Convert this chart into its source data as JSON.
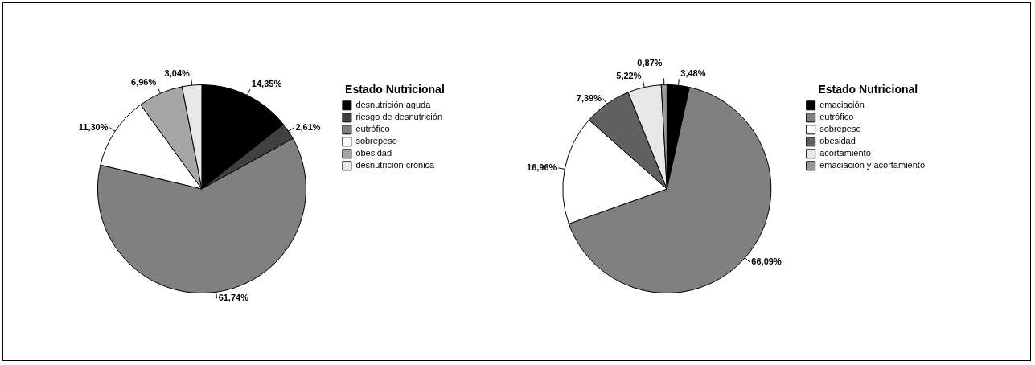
{
  "chart_data": [
    {
      "type": "pie",
      "legend_title": "Estado Nutricional",
      "legend": "right",
      "categories": [
        "desnutrición aguda",
        "riesgo de desnutrición",
        "eutrófico",
        "sobrepeso",
        "obesidad",
        "desnutrición crónica"
      ],
      "values": [
        14.35,
        2.61,
        61.74,
        11.3,
        6.96,
        3.04
      ],
      "value_labels": [
        "14,35%",
        "2,61%",
        "61,74%",
        "11,30%",
        "6,96%",
        "3,04%"
      ],
      "colors": [
        "#000000",
        "#404040",
        "#808080",
        "#ffffff",
        "#a6a6a6",
        "#e8e8e8"
      ]
    },
    {
      "type": "pie",
      "legend_title": "Estado Nutricional",
      "legend": "right",
      "categories": [
        "emaciación",
        "eutrófico",
        "sobrepeso",
        "obesidad",
        "acortamiento",
        "emaciación y acortamiento"
      ],
      "values": [
        3.48,
        66.09,
        16.96,
        7.39,
        5.22,
        0.87
      ],
      "value_labels": [
        "3,48%",
        "66,09%",
        "16,96%",
        "7,39%",
        "5,22%",
        "0,87%"
      ],
      "colors": [
        "#000000",
        "#808080",
        "#ffffff",
        "#606060",
        "#e8e8e8",
        "#999999"
      ]
    }
  ]
}
